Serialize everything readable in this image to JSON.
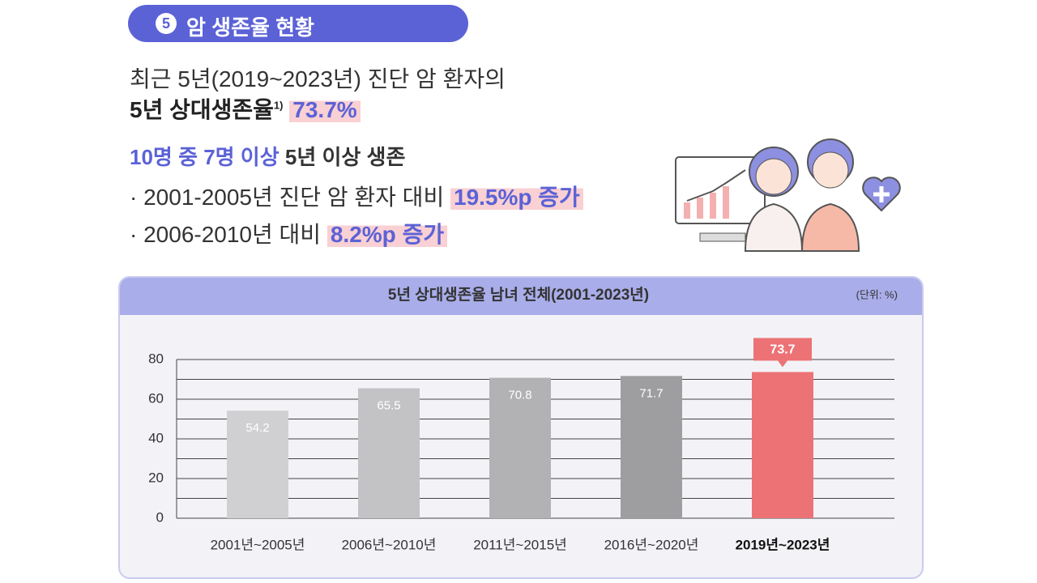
{
  "header": {
    "badge": "5",
    "title": "암 생존율 현황"
  },
  "intro": {
    "line1": "최근 5년(2019~2023년) 진단 암 환자의",
    "line2": "5년 상대생존율",
    "footnote": "1)",
    "rate": "73.7%"
  },
  "highlight": {
    "blue": "10명 중 7명 이상",
    "rest": "5년 이상 생존"
  },
  "bullets": [
    {
      "text": "· 2001-2005년 진단 암 환자 대비",
      "emphasis": "19.5%p 증가"
    },
    {
      "text": "· 2006-2010년 대비",
      "emphasis": "8.2%p 증가"
    }
  ],
  "chart_data": {
    "type": "bar",
    "title": "5년 상대생존율 남녀 전체(2001-2023년)",
    "unit": "(단위: %)",
    "categories": [
      "2001년~2005년",
      "2006년~2010년",
      "2011년~2015년",
      "2016년~2020년",
      "2019년~2023년"
    ],
    "values": [
      54.2,
      65.5,
      70.8,
      71.7,
      73.7
    ],
    "colors": [
      "#d0d0d2",
      "#c3c3c5",
      "#b2b2b4",
      "#9e9ea1",
      "#ec7275"
    ],
    "ylim": [
      0,
      80
    ],
    "yticks": [
      0,
      20,
      40,
      60,
      80
    ],
    "minor_yticks": [
      10,
      30,
      50,
      70
    ],
    "grid": true
  }
}
